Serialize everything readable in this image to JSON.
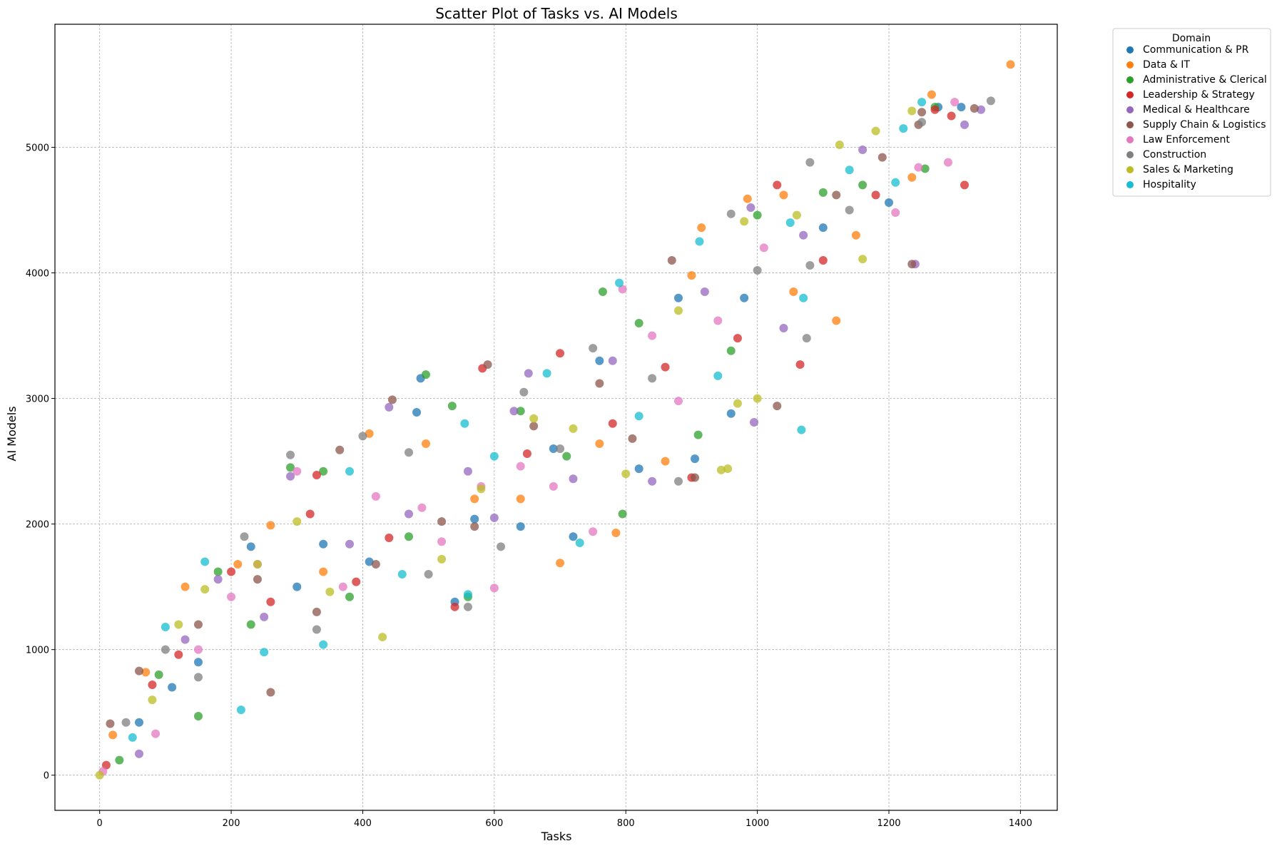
{
  "chart_data": {
    "type": "scatter",
    "title": "Scatter Plot of Tasks vs. AI Models",
    "xlabel": "Tasks",
    "ylabel": "AI Models",
    "xlim": [
      -68,
      1456
    ],
    "ylim": [
      -280,
      5980
    ],
    "x_ticks": [
      0,
      200,
      400,
      600,
      800,
      1000,
      1200,
      1400
    ],
    "y_ticks": [
      0,
      1000,
      2000,
      3000,
      4000,
      5000
    ],
    "grid": true,
    "legend_title": "Domain",
    "legend_position": "outside-top-right",
    "series": [
      {
        "name": "Communication & PR",
        "color": "#1f77b4",
        "points": [
          [
            488,
            3160
          ],
          [
            482,
            2890
          ],
          [
            760,
            3300
          ],
          [
            905,
            2520
          ],
          [
            1100,
            4360
          ],
          [
            1275,
            5320
          ],
          [
            1310,
            5320
          ],
          [
            960,
            2880
          ],
          [
            230,
            1820
          ],
          [
            540,
            1380
          ],
          [
            720,
            1900
          ],
          [
            880,
            3800
          ],
          [
            340,
            1840
          ],
          [
            150,
            900
          ],
          [
            110,
            700
          ],
          [
            690,
            2600
          ],
          [
            820,
            2440
          ],
          [
            1200,
            4560
          ],
          [
            640,
            1980
          ],
          [
            300,
            1500
          ],
          [
            60,
            420
          ],
          [
            410,
            1700
          ],
          [
            570,
            2040
          ],
          [
            980,
            3800
          ]
        ]
      },
      {
        "name": "Data & IT",
        "color": "#ff7f0e",
        "points": [
          [
            1385,
            5660
          ],
          [
            1265,
            5420
          ],
          [
            1235,
            4760
          ],
          [
            1120,
            3620
          ],
          [
            985,
            4590
          ],
          [
            915,
            4360
          ],
          [
            1055,
            3850
          ],
          [
            785,
            1930
          ],
          [
            700,
            1690
          ],
          [
            410,
            2720
          ],
          [
            496,
            2640
          ],
          [
            210,
            1680
          ],
          [
            130,
            1500
          ],
          [
            70,
            820
          ],
          [
            20,
            320
          ],
          [
            640,
            2200
          ],
          [
            860,
            2500
          ],
          [
            1150,
            4300
          ],
          [
            570,
            2200
          ],
          [
            340,
            1620
          ],
          [
            900,
            3980
          ],
          [
            260,
            1990
          ],
          [
            760,
            2640
          ],
          [
            1040,
            4620
          ]
        ]
      },
      {
        "name": "Administrative & Clerical",
        "color": "#2ca02c",
        "points": [
          [
            496,
            3190
          ],
          [
            536,
            2940
          ],
          [
            910,
            2710
          ],
          [
            795,
            2080
          ],
          [
            1270,
            5320
          ],
          [
            1255,
            4830
          ],
          [
            1100,
            4640
          ],
          [
            765,
            3850
          ],
          [
            340,
            2420
          ],
          [
            290,
            2450
          ],
          [
            150,
            470
          ],
          [
            560,
            1420
          ],
          [
            710,
            2540
          ],
          [
            960,
            3380
          ],
          [
            380,
            1420
          ],
          [
            230,
            1200
          ],
          [
            90,
            800
          ],
          [
            640,
            2900
          ],
          [
            1000,
            4460
          ],
          [
            1160,
            4700
          ],
          [
            820,
            3600
          ],
          [
            470,
            1900
          ],
          [
            180,
            1620
          ],
          [
            30,
            120
          ]
        ]
      },
      {
        "name": "Leadership & Strategy",
        "color": "#d62728",
        "points": [
          [
            1315,
            4700
          ],
          [
            1295,
            5250
          ],
          [
            1270,
            5300
          ],
          [
            1030,
            4700
          ],
          [
            1065,
            3270
          ],
          [
            582,
            3240
          ],
          [
            860,
            3250
          ],
          [
            900,
            2370
          ],
          [
            320,
            2080
          ],
          [
            330,
            2390
          ],
          [
            200,
            1620
          ],
          [
            80,
            720
          ],
          [
            10,
            80
          ],
          [
            440,
            1890
          ],
          [
            540,
            1340
          ],
          [
            650,
            2560
          ],
          [
            780,
            2800
          ],
          [
            970,
            3480
          ],
          [
            1100,
            4100
          ],
          [
            1180,
            4620
          ],
          [
            260,
            1380
          ],
          [
            390,
            1540
          ],
          [
            700,
            3360
          ],
          [
            120,
            960
          ]
        ]
      },
      {
        "name": "Medical & Healthcare",
        "color": "#9467bd",
        "points": [
          [
            1340,
            5300
          ],
          [
            1315,
            5180
          ],
          [
            1240,
            4070
          ],
          [
            995,
            2810
          ],
          [
            990,
            4520
          ],
          [
            652,
            3200
          ],
          [
            440,
            2930
          ],
          [
            290,
            2380
          ],
          [
            130,
            1080
          ],
          [
            60,
            170
          ],
          [
            560,
            2420
          ],
          [
            630,
            2900
          ],
          [
            720,
            2360
          ],
          [
            840,
            2340
          ],
          [
            920,
            3850
          ],
          [
            1070,
            4300
          ],
          [
            1160,
            4980
          ],
          [
            380,
            1840
          ],
          [
            250,
            1260
          ],
          [
            470,
            2080
          ],
          [
            780,
            3300
          ],
          [
            600,
            2050
          ],
          [
            180,
            1560
          ],
          [
            1040,
            3560
          ]
        ]
      },
      {
        "name": "Supply Chain & Logistics",
        "color": "#8c564b",
        "points": [
          [
            1330,
            5310
          ],
          [
            1235,
            4070
          ],
          [
            1245,
            5180
          ],
          [
            1250,
            5280
          ],
          [
            1030,
            2940
          ],
          [
            905,
            2370
          ],
          [
            590,
            3270
          ],
          [
            445,
            2990
          ],
          [
            365,
            2590
          ],
          [
            260,
            660
          ],
          [
            16,
            410
          ],
          [
            60,
            830
          ],
          [
            150,
            1200
          ],
          [
            240,
            1560
          ],
          [
            420,
            1680
          ],
          [
            520,
            2020
          ],
          [
            660,
            2780
          ],
          [
            760,
            3120
          ],
          [
            870,
            4100
          ],
          [
            1120,
            4620
          ],
          [
            1190,
            4920
          ],
          [
            330,
            1300
          ],
          [
            570,
            1980
          ],
          [
            810,
            2680
          ]
        ]
      },
      {
        "name": "Law Enforcement",
        "color": "#e377c2",
        "points": [
          [
            1300,
            5360
          ],
          [
            1290,
            4880
          ],
          [
            1245,
            4840
          ],
          [
            795,
            3870
          ],
          [
            750,
            1940
          ],
          [
            600,
            1490
          ],
          [
            490,
            2130
          ],
          [
            420,
            2220
          ],
          [
            300,
            2420
          ],
          [
            85,
            330
          ],
          [
            5,
            30
          ],
          [
            150,
            1000
          ],
          [
            240,
            1680
          ],
          [
            520,
            1860
          ],
          [
            640,
            2460
          ],
          [
            880,
            2980
          ],
          [
            940,
            3620
          ],
          [
            1010,
            4200
          ],
          [
            1210,
            4480
          ],
          [
            690,
            2300
          ],
          [
            370,
            1500
          ],
          [
            200,
            1420
          ],
          [
            580,
            2300
          ],
          [
            840,
            3500
          ]
        ]
      },
      {
        "name": "Construction",
        "color": "#7f7f7f",
        "points": [
          [
            1355,
            5370
          ],
          [
            1250,
            5200
          ],
          [
            1080,
            4880
          ],
          [
            1080,
            4060
          ],
          [
            1075,
            3480
          ],
          [
            880,
            2340
          ],
          [
            290,
            2550
          ],
          [
            470,
            2570
          ],
          [
            645,
            3050
          ],
          [
            960,
            4470
          ],
          [
            560,
            1340
          ],
          [
            400,
            2700
          ],
          [
            150,
            780
          ],
          [
            40,
            420
          ],
          [
            220,
            1900
          ],
          [
            330,
            1160
          ],
          [
            750,
            3400
          ],
          [
            1140,
            4500
          ],
          [
            700,
            2600
          ],
          [
            500,
            1600
          ],
          [
            610,
            1820
          ],
          [
            840,
            3160
          ],
          [
            1000,
            4020
          ],
          [
            100,
            1000
          ]
        ]
      },
      {
        "name": "Sales & Marketing",
        "color": "#bcbd22",
        "points": [
          [
            1235,
            5290
          ],
          [
            1180,
            5130
          ],
          [
            1160,
            4110
          ],
          [
            1125,
            5020
          ],
          [
            945,
            2430
          ],
          [
            955,
            2440
          ],
          [
            970,
            2960
          ],
          [
            980,
            4410
          ],
          [
            580,
            2280
          ],
          [
            430,
            1100
          ],
          [
            240,
            1680
          ],
          [
            120,
            1200
          ],
          [
            80,
            600
          ],
          [
            0,
            0
          ],
          [
            350,
            1460
          ],
          [
            520,
            1720
          ],
          [
            660,
            2840
          ],
          [
            800,
            2400
          ],
          [
            880,
            3700
          ],
          [
            1060,
            4460
          ],
          [
            160,
            1480
          ],
          [
            300,
            2020
          ],
          [
            720,
            2760
          ],
          [
            1000,
            3000
          ]
        ]
      },
      {
        "name": "Hospitality",
        "color": "#17becf",
        "points": [
          [
            1250,
            5360
          ],
          [
            1222,
            5150
          ],
          [
            1210,
            4720
          ],
          [
            1070,
            3800
          ],
          [
            1067,
            2750
          ],
          [
            1050,
            4400
          ],
          [
            790,
            3920
          ],
          [
            912,
            4250
          ],
          [
            555,
            2800
          ],
          [
            730,
            1850
          ],
          [
            215,
            520
          ],
          [
            100,
            1180
          ],
          [
            160,
            1700
          ],
          [
            380,
            2420
          ],
          [
            460,
            1600
          ],
          [
            560,
            1440
          ],
          [
            600,
            2540
          ],
          [
            680,
            3200
          ],
          [
            820,
            2860
          ],
          [
            940,
            3180
          ],
          [
            1140,
            4820
          ],
          [
            250,
            980
          ],
          [
            50,
            300
          ],
          [
            340,
            1040
          ]
        ]
      }
    ]
  }
}
